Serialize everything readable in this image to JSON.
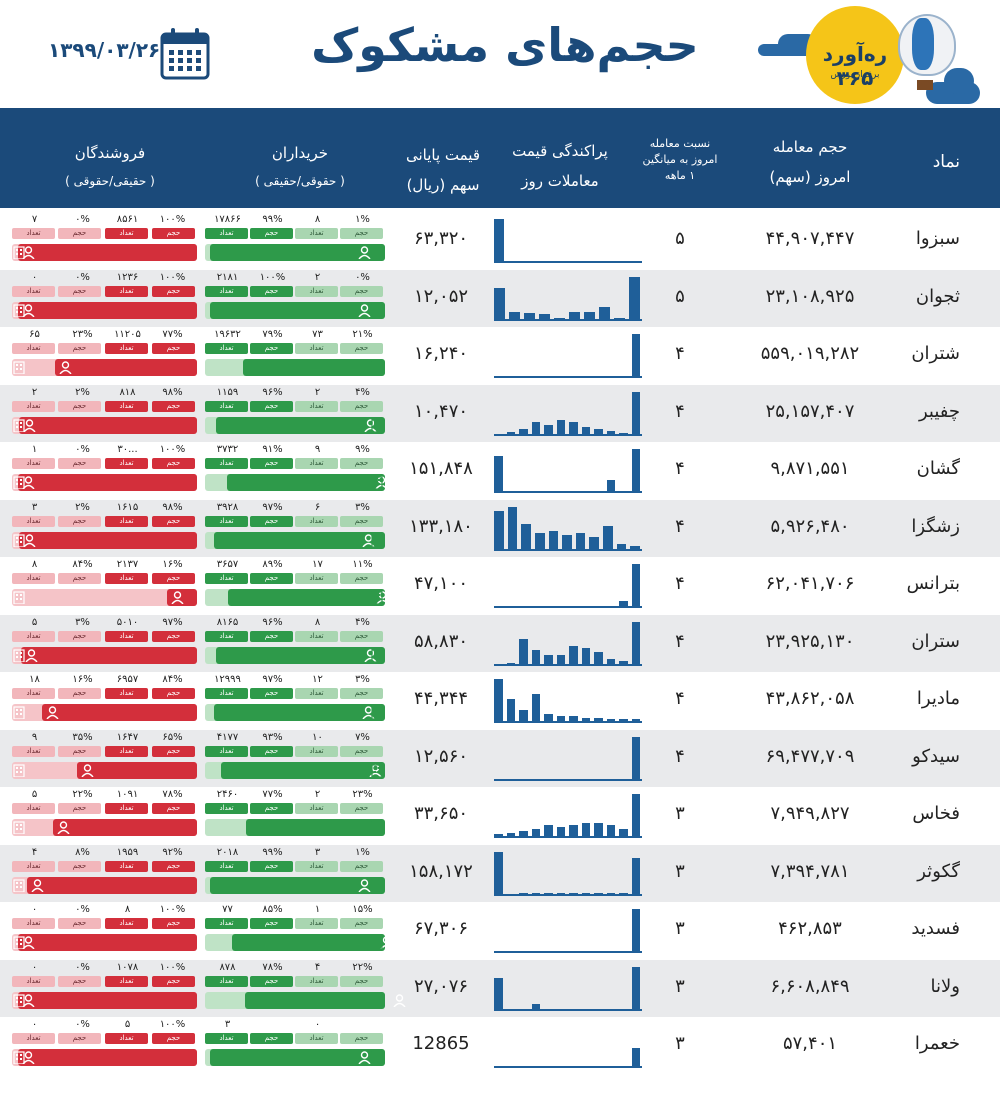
{
  "header": {
    "title": "حجم‌های مشکوک",
    "date": "۱۳۹۹/۰۳/۲۶",
    "logo_text": "رە‌آورد ۳۶۵",
    "logo_sub": "برفراز بورس",
    "calendar_icon": "calendar-icon"
  },
  "columns": {
    "symbol": "نماد",
    "volume_l1": "حجم معامله",
    "volume_l2": "امروز (سهم)",
    "ratio_l1": "نسبت معامله",
    "ratio_l2": "امروز به میانگین",
    "ratio_l3": "۱ ماهه",
    "dispersion_l1": "پراکندگی قیمت",
    "dispersion_l2": "معاملات روز",
    "price_l1": "قیمت پایانی",
    "price_l2": "سهم (ریال)",
    "buyers_l1": "خریداران",
    "buyers_l2": "( حقوقی/حقیقی )",
    "sellers_l1": "فروشندگان",
    "sellers_l2": "( حقیقی/حقوقی )"
  },
  "tag_labels": {
    "volume": "حجم",
    "count": "تعداد"
  },
  "colors": {
    "header_bg": "#1b4a7a",
    "buy": "#2e9a4a",
    "sell": "#d32f3b",
    "bar": "#1f5f99"
  },
  "rows": [
    {
      "symbol": "سبزوا",
      "volume": "۴۴,۹۰۷,۴۴۷",
      "ratio": "۵",
      "price": "۶۳,۳۲۰",
      "buy": {
        "ind_pct": "۹۹%",
        "ind_cnt": "۱۷۸۶۶",
        "inst_cnt": "۸",
        "inst_pct": "۱%"
      },
      "sell": {
        "ind_pct": "۱۰۰%",
        "ind_cnt": "۸۵۶۱",
        "inst_pct": "۰%",
        "inst_cnt": "۷"
      },
      "bars": [
        1,
        0,
        0,
        0,
        0,
        0,
        0,
        0,
        0,
        0,
        0
      ],
      "buy_fill": 0.97,
      "sell_fill": 0.97
    },
    {
      "symbol": "ثجوان",
      "volume": "۲۳,۱۰۸,۹۲۵",
      "ratio": "۵",
      "price": "۱۲,۰۵۲",
      "buy": {
        "ind_pct": "۱۰۰%",
        "ind_cnt": "۲۱۸۱",
        "inst_cnt": "۲",
        "inst_pct": "۰%"
      },
      "sell": {
        "ind_pct": "۱۰۰%",
        "ind_cnt": "۱۲۳۶",
        "inst_pct": "۰%",
        "inst_cnt": "۰"
      },
      "bars": [
        0.75,
        0.2,
        0.18,
        0.15,
        0.05,
        0.2,
        0.2,
        0.3,
        0.05,
        1
      ],
      "buy_fill": 0.97,
      "sell_fill": 0.97
    },
    {
      "symbol": "شتران",
      "volume": "۵۵۹,۰۱۹,۲۸۲",
      "ratio": "۴",
      "price": "۱۶,۲۴۰",
      "buy": {
        "ind_pct": "۷۹%",
        "ind_cnt": "۱۹۶۳۲",
        "inst_cnt": "۷۳",
        "inst_pct": "۲۱%"
      },
      "sell": {
        "ind_pct": "۷۷%",
        "ind_cnt": "۱۱۲۰۵",
        "inst_pct": "۲۳%",
        "inst_cnt": "۶۵"
      },
      "bars": [
        0,
        0,
        0,
        0,
        0,
        0,
        0,
        0,
        0,
        0,
        0,
        1
      ],
      "buy_fill": 0.79,
      "sell_fill": 0.77
    },
    {
      "symbol": "چفیبر",
      "volume": "۲۵,۱۵۷,۴۰۷",
      "ratio": "۴",
      "price": "۱۰,۴۷۰",
      "buy": {
        "ind_pct": "۹۶%",
        "ind_cnt": "۱۱۵۹",
        "inst_cnt": "۲",
        "inst_pct": "۴%"
      },
      "sell": {
        "ind_pct": "۹۸%",
        "ind_cnt": "۸۱۸",
        "inst_pct": "۲%",
        "inst_cnt": "۲"
      },
      "bars": [
        0,
        0.08,
        0.15,
        0.3,
        0.25,
        0.35,
        0.3,
        0.2,
        0.15,
        0.1,
        0.05,
        1
      ],
      "buy_fill": 0.94,
      "sell_fill": 0.96
    },
    {
      "symbol": "گشان",
      "volume": "۹,۸۷۱,۵۵۱",
      "ratio": "۴",
      "price": "۱۵۱,۸۴۸",
      "buy": {
        "ind_pct": "۹۱%",
        "ind_cnt": "۳۷۳۲",
        "inst_cnt": "۹",
        "inst_pct": "۹%"
      },
      "sell": {
        "ind_pct": "۱۰۰%",
        "ind_cnt": "۳۰...",
        "inst_pct": "۰%",
        "inst_cnt": "۱"
      },
      "bars": [
        0.85,
        0,
        0,
        0,
        0,
        0,
        0,
        0,
        0,
        0.3,
        0,
        1
      ],
      "buy_fill": 0.88,
      "sell_fill": 0.97
    },
    {
      "symbol": "زشگزا",
      "volume": "۵,۹۲۶,۴۸۰",
      "ratio": "۴",
      "price": "۱۳۳,۱۸۰",
      "buy": {
        "ind_pct": "۹۷%",
        "ind_cnt": "۳۹۲۸",
        "inst_cnt": "۶",
        "inst_pct": "۳%"
      },
      "sell": {
        "ind_pct": "۹۸%",
        "ind_cnt": "۱۶۱۵",
        "inst_pct": "۲%",
        "inst_cnt": "۳"
      },
      "bars": [
        0.9,
        1,
        0.6,
        0.4,
        0.45,
        0.35,
        0.4,
        0.3,
        0.55,
        0.15,
        0.1
      ],
      "buy_fill": 0.95,
      "sell_fill": 0.96
    },
    {
      "symbol": "بترانس",
      "volume": "۶۲,۰۴۱,۷۰۶",
      "ratio": "۴",
      "price": "۴۷,۱۰۰",
      "buy": {
        "ind_pct": "۸۹%",
        "ind_cnt": "۳۶۵۷",
        "inst_cnt": "۱۷",
        "inst_pct": "۱۱%"
      },
      "sell": {
        "ind_pct": "۱۶%",
        "ind_cnt": "۲۱۳۷",
        "inst_pct": "۸۴%",
        "inst_cnt": "۸"
      },
      "bars": [
        0,
        0,
        0,
        0,
        0,
        0,
        0,
        0,
        0,
        0,
        0.15,
        1
      ],
      "buy_fill": 0.87,
      "sell_fill": 0.16
    },
    {
      "symbol": "ستران",
      "volume": "۲۳,۹۲۵,۱۳۰",
      "ratio": "۴",
      "price": "۵۸,۸۳۰",
      "buy": {
        "ind_pct": "۹۶%",
        "ind_cnt": "۸۱۶۵",
        "inst_cnt": "۸",
        "inst_pct": "۴%"
      },
      "sell": {
        "ind_pct": "۹۷%",
        "ind_cnt": "۵۰۱۰",
        "inst_pct": "۳%",
        "inst_cnt": "۵"
      },
      "bars": [
        0,
        0.05,
        0.6,
        0.35,
        0.25,
        0.25,
        0.45,
        0.4,
        0.3,
        0.15,
        0.1,
        1
      ],
      "buy_fill": 0.94,
      "sell_fill": 0.95
    },
    {
      "symbol": "مادیرا",
      "volume": "۴۳,۸۶۲,۰۵۸",
      "ratio": "۴",
      "price": "۴۴,۳۴۴",
      "buy": {
        "ind_pct": "۹۷%",
        "ind_cnt": "۱۲۹۹۹",
        "inst_cnt": "۱۲",
        "inst_pct": "۳%"
      },
      "sell": {
        "ind_pct": "۸۴%",
        "ind_cnt": "۶۹۵۷",
        "inst_pct": "۱۶%",
        "inst_cnt": "۱۸"
      },
      "bars": [
        1,
        0.55,
        0.3,
        0.65,
        0.2,
        0.15,
        0.15,
        0.12,
        0.12,
        0.1,
        0.1,
        0.1
      ],
      "buy_fill": 0.95,
      "sell_fill": 0.84
    },
    {
      "symbol": "سیدکو",
      "volume": "۶۹,۴۷۷,۷۰۹",
      "ratio": "۴",
      "price": "۱۲,۵۶۰",
      "buy": {
        "ind_pct": "۹۳%",
        "ind_cnt": "۴۱۷۷",
        "inst_cnt": "۱۰",
        "inst_pct": "۷%"
      },
      "sell": {
        "ind_pct": "۶۵%",
        "ind_cnt": "۱۶۴۷",
        "inst_pct": "۳۵%",
        "inst_cnt": "۹"
      },
      "bars": [
        0,
        0,
        0,
        0,
        0,
        0,
        0,
        0,
        0,
        0,
        0,
        1
      ],
      "buy_fill": 0.91,
      "sell_fill": 0.65
    },
    {
      "symbol": "فخاس",
      "volume": "۷,۹۴۹,۸۲۷",
      "ratio": "۳",
      "price": "۳۳,۶۵۰",
      "buy": {
        "ind_pct": "۷۷%",
        "ind_cnt": "۲۴۶۰",
        "inst_cnt": "۲",
        "inst_pct": "۲۳%"
      },
      "sell": {
        "ind_pct": "۷۸%",
        "ind_cnt": "۱۰۹۱",
        "inst_pct": "۲۲%",
        "inst_cnt": "۵"
      },
      "bars": [
        0.1,
        0.12,
        0.15,
        0.2,
        0.3,
        0.25,
        0.3,
        0.35,
        0.35,
        0.3,
        0.2,
        1
      ],
      "buy_fill": 0.77,
      "sell_fill": 0.78
    },
    {
      "symbol": "گکوثر",
      "volume": "۷,۳۹۴,۷۸۱",
      "ratio": "۳",
      "price": "۱۵۸,۱۷۲",
      "buy": {
        "ind_pct": "۹۹%",
        "ind_cnt": "۲۰۱۸",
        "inst_cnt": "۳",
        "inst_pct": "۱%"
      },
      "sell": {
        "ind_pct": "۹۲%",
        "ind_cnt": "۱۹۵۹",
        "inst_pct": "۸%",
        "inst_cnt": "۴"
      },
      "bars": [
        1,
        0,
        0.05,
        0.05,
        0.05,
        0.05,
        0.05,
        0.05,
        0.05,
        0.05,
        0.05,
        0.85
      ],
      "buy_fill": 0.97,
      "sell_fill": 0.92
    },
    {
      "symbol": "فسدید",
      "volume": "۴۶۲,۸۵۳",
      "ratio": "۳",
      "price": "۶۷,۳۰۶",
      "buy": {
        "ind_pct": "۸۵%",
        "ind_cnt": "۷۷",
        "inst_cnt": "۱",
        "inst_pct": "۱۵%"
      },
      "sell": {
        "ind_pct": "۱۰۰%",
        "ind_cnt": "۸",
        "inst_pct": "۰%",
        "inst_cnt": "۰"
      },
      "bars": [
        0,
        0,
        0,
        0,
        0,
        0,
        0,
        0,
        0,
        0,
        0,
        1
      ],
      "buy_fill": 0.85,
      "sell_fill": 0.97
    },
    {
      "symbol": "ولانا",
      "volume": "۶,۶۰۸,۸۴۹",
      "ratio": "۳",
      "price": "۲۷,۰۷۶",
      "buy": {
        "ind_pct": "۷۸%",
        "ind_cnt": "۸۷۸",
        "inst_cnt": "۴",
        "inst_pct": "۲۲%"
      },
      "sell": {
        "ind_pct": "۱۰۰%",
        "ind_cnt": "۱۰۷۸",
        "inst_pct": "۰%",
        "inst_cnt": "۰"
      },
      "bars": [
        0.75,
        0,
        0,
        0.15,
        0,
        0,
        0,
        0,
        0,
        0,
        0,
        1
      ],
      "buy_fill": 0.78,
      "sell_fill": 0.97
    },
    {
      "symbol": "خعمرا",
      "volume": "۵۷,۴۰۱",
      "ratio": "۳",
      "price": "12865",
      "buy": {
        "ind_pct": "",
        "ind_cnt": "۳",
        "inst_cnt": "۰",
        "inst_pct": ""
      },
      "sell": {
        "ind_pct": "۱۰۰%",
        "ind_cnt": "۵",
        "inst_pct": "۰%",
        "inst_cnt": "۰"
      },
      "bars": [
        0,
        0,
        0,
        0,
        0,
        0,
        0,
        0,
        0,
        0,
        0,
        0.45
      ],
      "buy_fill": 0.97,
      "sell_fill": 0.97
    }
  ]
}
